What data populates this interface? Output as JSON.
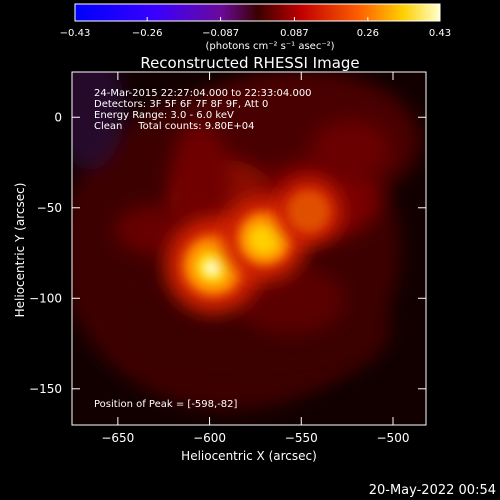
{
  "chart_data": {
    "type": "heatmap",
    "title": "Reconstructed RHESSI Image",
    "xlabel": "Heliocentric X (arcsec)",
    "ylabel": "Heliocentric Y (arcsec)",
    "x_ticks": [
      -650,
      -600,
      -550,
      -500
    ],
    "y_ticks": [
      0,
      -50,
      -100,
      -150
    ],
    "xlim": [
      -675,
      -482
    ],
    "ylim": [
      -170,
      25
    ],
    "colorbar": {
      "ticks": [
        "-0.43",
        "-0.26",
        "-0.087",
        "0.087",
        "0.26",
        "0.43"
      ],
      "unit_label": "(photons cm⁻² s⁻¹ asec⁻²)",
      "range": [
        -0.43,
        0.43
      ]
    },
    "info_lines": [
      "24-Mar-2015 22:27:04.000 to 22:33:04.000",
      "Detectors: 3F 5F 6F 7F 8F 9F, Att 0",
      "Energy Range: 3.0 - 6.0 keV",
      "Clean     Total counts: 9.80E+04"
    ],
    "peak_text": "Position of Peak = [-598,-82]",
    "sources": [
      {
        "x": -598,
        "y": -82,
        "intensity": 0.43
      },
      {
        "x": -570,
        "y": -67,
        "intensity": 0.34
      },
      {
        "x": -546,
        "y": -52,
        "intensity": 0.18
      }
    ],
    "footer_date": "20-May-2022 00:54"
  }
}
